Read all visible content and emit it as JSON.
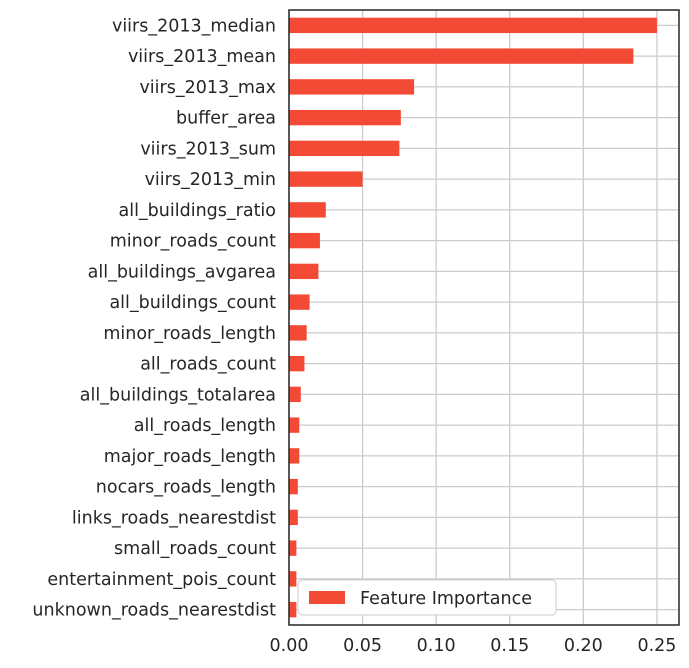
{
  "chart_data": {
    "type": "bar",
    "orientation": "horizontal",
    "bar_color": "#f24a34",
    "categories": [
      "viirs_2013_median",
      "viirs_2013_mean",
      "viirs_2013_max",
      "buffer_area",
      "viirs_2013_sum",
      "viirs_2013_min",
      "all_buildings_ratio",
      "minor_roads_count",
      "all_buildings_avgarea",
      "all_buildings_count",
      "minor_roads_length",
      "all_roads_count",
      "all_buildings_totalarea",
      "all_roads_length",
      "major_roads_length",
      "nocars_roads_length",
      "links_roads_nearestdist",
      "small_roads_count",
      "entertainment_pois_count",
      "unknown_roads_nearestdist"
    ],
    "series": [
      {
        "name": "Feature Importance",
        "values": [
          0.25,
          0.234,
          0.085,
          0.076,
          0.075,
          0.05,
          0.025,
          0.021,
          0.02,
          0.014,
          0.012,
          0.0105,
          0.008,
          0.007,
          0.007,
          0.006,
          0.006,
          0.005,
          0.005,
          0.005
        ]
      }
    ],
    "xlim": [
      0,
      0.265
    ],
    "xticks": [
      "0.00",
      "0.05",
      "0.10",
      "0.15",
      "0.20",
      "0.25"
    ],
    "xtick_values": [
      0,
      0.05,
      0.1,
      0.15,
      0.2,
      0.25
    ],
    "grid": true,
    "legend": {
      "position": "lower-right",
      "label": "Feature Importance"
    }
  }
}
